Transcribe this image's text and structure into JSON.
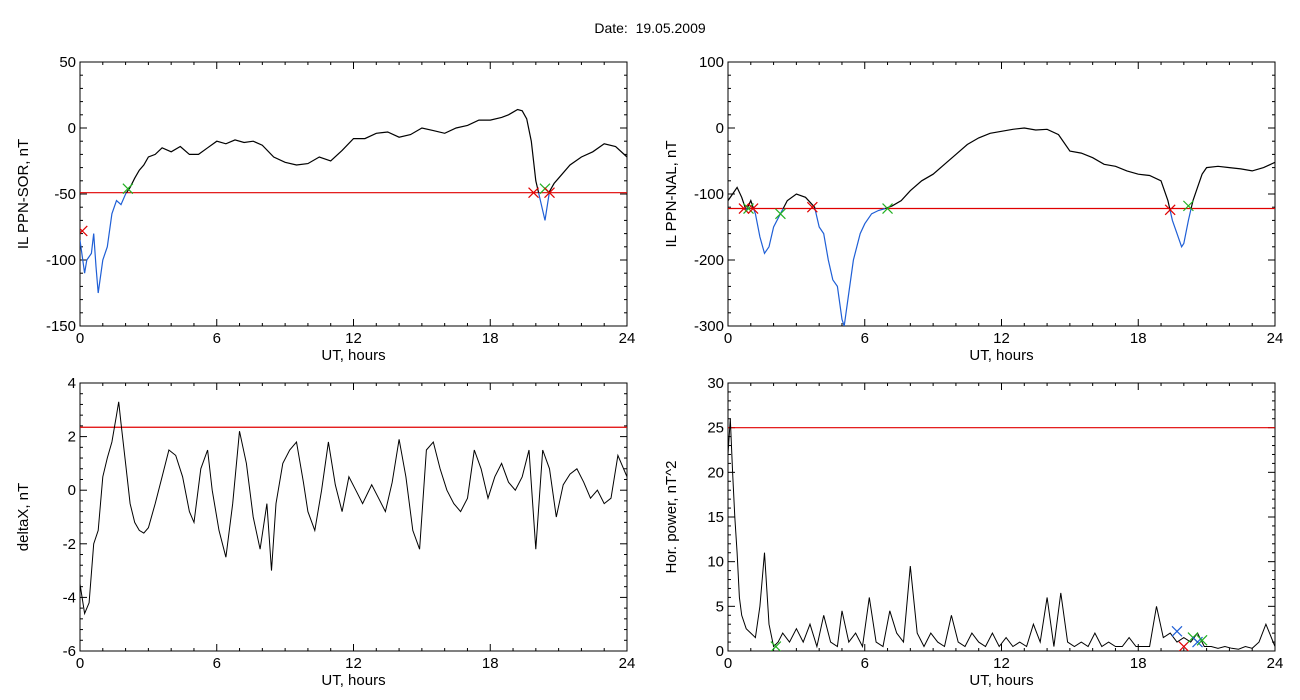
{
  "header": {
    "date_label": "Date:",
    "date_value": "19.05.2009"
  },
  "colors": {
    "trace": "#000000",
    "threshold": "#e00000",
    "below": "#1f5fd6",
    "cross_start": "#e00000",
    "cross_end": "#20b020",
    "cross_extra": "#1f5fd6"
  },
  "chart_data": [
    {
      "type": "line",
      "xlabel": "UT, hours",
      "ylabel": "IL PPN-SOR, nT",
      "xlim": [
        0,
        24
      ],
      "ylim": [
        -150,
        50
      ],
      "xticks": [
        0,
        6,
        12,
        18,
        24
      ],
      "yticks": [
        -150,
        -100,
        -50,
        0,
        50
      ],
      "threshold": -49,
      "series": [
        {
          "x": [
            0,
            0.2,
            0.3,
            0.5,
            0.6,
            0.7,
            0.8,
            1.0,
            1.2,
            1.4,
            1.6,
            1.8,
            2.0,
            2.2,
            2.4,
            2.6,
            2.8,
            3.0,
            3.3,
            3.6,
            4.0,
            4.4,
            4.8,
            5.2,
            5.6,
            6.0,
            6.4,
            6.8,
            7.2,
            7.6,
            8.0,
            8.5,
            9.0,
            9.5,
            10.0,
            10.5,
            11.0,
            11.5,
            12.0,
            12.5,
            13.0,
            13.5,
            14.0,
            14.5,
            15.0,
            15.5,
            16.0,
            16.5,
            17.0,
            17.5,
            18.0,
            18.5,
            18.8,
            19.0,
            19.2,
            19.4,
            19.6,
            19.8,
            20.0,
            20.2,
            20.4,
            20.6,
            20.8,
            21.0,
            21.5,
            22.0,
            22.5,
            23.0,
            23.5,
            24
          ],
          "y": [
            -85,
            -110,
            -100,
            -95,
            -80,
            -105,
            -125,
            -100,
            -90,
            -65,
            -55,
            -58,
            -50,
            -45,
            -38,
            -32,
            -28,
            -22,
            -20,
            -15,
            -18,
            -14,
            -20,
            -20,
            -15,
            -10,
            -12,
            -9,
            -11,
            -10,
            -13,
            -22,
            -26,
            -28,
            -27,
            -22,
            -25,
            -17,
            -8,
            -8,
            -4,
            -3,
            -7,
            -5,
            0,
            -2,
            -4,
            0,
            2,
            6,
            6,
            8,
            10,
            12,
            14,
            13,
            7,
            -10,
            -40,
            -55,
            -70,
            -48,
            -42,
            -38,
            -28,
            -22,
            -18,
            -12,
            -14,
            -22
          ]
        }
      ],
      "crossings": [
        {
          "x": 0.1,
          "y": -78,
          "kind": "start"
        },
        {
          "x": 2.1,
          "y": -46,
          "kind": "end"
        },
        {
          "x": 19.9,
          "y": -49,
          "kind": "start"
        },
        {
          "x": 20.4,
          "y": -46,
          "kind": "end"
        },
        {
          "x": 20.6,
          "y": -49,
          "kind": "start"
        }
      ]
    },
    {
      "type": "line",
      "xlabel": "UT, hours",
      "ylabel": "IL PPN-NAL, nT",
      "xlim": [
        0,
        24
      ],
      "ylim": [
        -300,
        100
      ],
      "xticks": [
        0,
        6,
        12,
        18,
        24
      ],
      "yticks": [
        -300,
        -200,
        -100,
        0,
        100
      ],
      "threshold": -122,
      "series": [
        {
          "x": [
            0,
            0.2,
            0.4,
            0.6,
            0.8,
            1.0,
            1.2,
            1.4,
            1.6,
            1.8,
            2.0,
            2.3,
            2.6,
            3.0,
            3.4,
            3.8,
            4.0,
            4.2,
            4.4,
            4.6,
            4.8,
            5.0,
            5.1,
            5.3,
            5.5,
            5.8,
            6.0,
            6.3,
            6.6,
            6.9,
            7.2,
            7.6,
            8.0,
            8.5,
            9.0,
            9.5,
            10.0,
            10.5,
            11.0,
            11.5,
            12.0,
            12.5,
            13.0,
            13.5,
            14.0,
            14.5,
            15.0,
            15.5,
            16.0,
            16.5,
            17.0,
            17.5,
            18.0,
            18.5,
            19.0,
            19.3,
            19.5,
            19.7,
            19.9,
            20.0,
            20.2,
            20.4,
            20.6,
            20.8,
            21.0,
            21.5,
            22.0,
            22.5,
            23.0,
            23.5,
            24
          ],
          "y": [
            -110,
            -100,
            -90,
            -105,
            -125,
            -110,
            -130,
            -165,
            -190,
            -180,
            -150,
            -130,
            -110,
            -100,
            -105,
            -120,
            -150,
            -160,
            -200,
            -230,
            -240,
            -290,
            -300,
            -250,
            -200,
            -160,
            -145,
            -130,
            -125,
            -122,
            -118,
            -110,
            -95,
            -80,
            -70,
            -55,
            -40,
            -25,
            -15,
            -8,
            -5,
            -2,
            0,
            -3,
            -2,
            -10,
            -35,
            -38,
            -45,
            -55,
            -58,
            -65,
            -70,
            -72,
            -80,
            -110,
            -140,
            -160,
            -180,
            -175,
            -140,
            -110,
            -90,
            -70,
            -60,
            -58,
            -60,
            -62,
            -65,
            -60,
            -52
          ]
        }
      ],
      "crossings": [
        {
          "x": 0.7,
          "y": -122,
          "kind": "start"
        },
        {
          "x": 0.9,
          "y": -122,
          "kind": "end"
        },
        {
          "x": 1.1,
          "y": -122,
          "kind": "start"
        },
        {
          "x": 2.3,
          "y": -130,
          "kind": "end"
        },
        {
          "x": 3.7,
          "y": -120,
          "kind": "start"
        },
        {
          "x": 7.0,
          "y": -122,
          "kind": "end"
        },
        {
          "x": 19.4,
          "y": -124,
          "kind": "start"
        },
        {
          "x": 20.2,
          "y": -118,
          "kind": "end"
        }
      ]
    },
    {
      "type": "line",
      "xlabel": "UT, hours",
      "ylabel": "deltaX, nT",
      "xlim": [
        0,
        24
      ],
      "ylim": [
        -6,
        4
      ],
      "xticks": [
        0,
        6,
        12,
        18,
        24
      ],
      "yticks": [
        -6,
        -4,
        -2,
        0,
        2,
        4
      ],
      "threshold": 2.35,
      "series": [
        {
          "x": [
            0,
            0.2,
            0.4,
            0.6,
            0.8,
            1.0,
            1.2,
            1.4,
            1.6,
            1.7,
            1.8,
            2.0,
            2.2,
            2.4,
            2.6,
            2.8,
            3.0,
            3.3,
            3.6,
            3.9,
            4.2,
            4.5,
            4.8,
            5.0,
            5.3,
            5.6,
            5.8,
            6.1,
            6.4,
            6.7,
            7.0,
            7.3,
            7.6,
            7.9,
            8.2,
            8.4,
            8.6,
            8.9,
            9.2,
            9.5,
            9.8,
            10.0,
            10.3,
            10.6,
            10.9,
            11.2,
            11.5,
            11.8,
            12.1,
            12.4,
            12.8,
            13.1,
            13.4,
            13.7,
            14.0,
            14.3,
            14.6,
            14.9,
            15.2,
            15.5,
            15.8,
            16.1,
            16.4,
            16.7,
            17.0,
            17.3,
            17.6,
            17.9,
            18.2,
            18.5,
            18.8,
            19.1,
            19.4,
            19.7,
            20.0,
            20.3,
            20.6,
            20.9,
            21.2,
            21.5,
            21.8,
            22.1,
            22.4,
            22.7,
            23.0,
            23.3,
            23.6,
            24
          ],
          "y": [
            -3.5,
            -4.6,
            -4.2,
            -2.0,
            -1.5,
            0.5,
            1.2,
            1.8,
            2.8,
            3.3,
            2.5,
            1.0,
            -0.5,
            -1.2,
            -1.5,
            -1.6,
            -1.4,
            -0.5,
            0.5,
            1.5,
            1.3,
            0.5,
            -0.8,
            -1.2,
            0.8,
            1.5,
            0.0,
            -1.5,
            -2.5,
            -0.5,
            2.2,
            1.0,
            -1.0,
            -2.2,
            -0.5,
            -3.0,
            -0.5,
            1.0,
            1.5,
            1.8,
            0.3,
            -0.8,
            -1.5,
            0.0,
            1.8,
            0.2,
            -0.8,
            0.5,
            0.0,
            -0.5,
            0.2,
            -0.3,
            -0.8,
            0.3,
            1.9,
            0.5,
            -1.5,
            -2.2,
            1.5,
            1.8,
            0.8,
            0.0,
            -0.5,
            -0.8,
            -0.3,
            1.5,
            0.8,
            -0.3,
            0.5,
            1.0,
            0.3,
            0.0,
            0.5,
            1.5,
            -2.2,
            1.5,
            0.8,
            -1.0,
            0.2,
            0.6,
            0.8,
            0.3,
            -0.3,
            0.0,
            -0.5,
            -0.3,
            1.3,
            0.5
          ]
        }
      ],
      "crossings": []
    },
    {
      "type": "line",
      "xlabel": "UT, hours",
      "ylabel": "Hor. power, nT^2",
      "xlim": [
        0,
        24
      ],
      "ylim": [
        0,
        30
      ],
      "xticks": [
        0,
        6,
        12,
        18,
        24
      ],
      "yticks": [
        0,
        5,
        10,
        15,
        20,
        25,
        30
      ],
      "threshold": 25,
      "series": [
        {
          "x": [
            0,
            0.1,
            0.2,
            0.3,
            0.4,
            0.5,
            0.6,
            0.8,
            1.0,
            1.2,
            1.4,
            1.6,
            1.8,
            2.0,
            2.2,
            2.4,
            2.7,
            3.0,
            3.3,
            3.6,
            3.9,
            4.2,
            4.5,
            4.8,
            5.0,
            5.3,
            5.6,
            5.9,
            6.2,
            6.5,
            6.8,
            7.1,
            7.4,
            7.7,
            8.0,
            8.3,
            8.6,
            8.9,
            9.2,
            9.5,
            9.8,
            10.1,
            10.4,
            10.7,
            11.0,
            11.3,
            11.6,
            11.9,
            12.2,
            12.5,
            12.8,
            13.1,
            13.4,
            13.7,
            14.0,
            14.3,
            14.6,
            14.9,
            15.2,
            15.5,
            15.8,
            16.1,
            16.4,
            16.7,
            17.0,
            17.3,
            17.6,
            17.9,
            18.2,
            18.5,
            18.8,
            19.1,
            19.4,
            19.7,
            20.0,
            20.3,
            20.6,
            20.9,
            21.2,
            21.5,
            21.8,
            22.1,
            22.4,
            22.7,
            23.0,
            23.3,
            23.6,
            24
          ],
          "y": [
            22,
            26,
            20,
            15,
            11,
            6,
            4,
            2.5,
            2,
            1.5,
            5,
            11,
            3,
            0.5,
            1,
            2,
            1,
            2.5,
            1,
            3,
            0.5,
            4,
            1,
            0.5,
            4.5,
            1,
            2,
            0.5,
            6,
            1,
            0.5,
            4.5,
            2,
            1,
            9.5,
            2,
            0.5,
            2,
            1,
            0.5,
            4,
            1,
            0.5,
            2,
            1,
            0.5,
            2,
            0.5,
            1.5,
            0.5,
            1,
            0.5,
            3,
            1,
            6,
            0.5,
            6.5,
            1,
            0.5,
            1,
            0.5,
            2,
            0.5,
            1,
            0.5,
            0.5,
            1.5,
            0.5,
            0.5,
            0.5,
            5,
            1.5,
            2,
            1,
            1.5,
            1,
            2,
            0.5,
            0.5,
            0.3,
            0.5,
            0.3,
            0.2,
            0.5,
            0.3,
            1,
            3,
            0.5
          ]
        }
      ],
      "crossings": [
        {
          "x": 2.1,
          "y": 0.5,
          "kind": "end"
        },
        {
          "x": 19.7,
          "y": 2.2,
          "kind": "extra"
        },
        {
          "x": 20.0,
          "y": 0.5,
          "kind": "start"
        },
        {
          "x": 20.4,
          "y": 1.5,
          "kind": "end"
        },
        {
          "x": 20.6,
          "y": 1.0,
          "kind": "extra"
        },
        {
          "x": 20.8,
          "y": 1.2,
          "kind": "end"
        }
      ]
    }
  ]
}
